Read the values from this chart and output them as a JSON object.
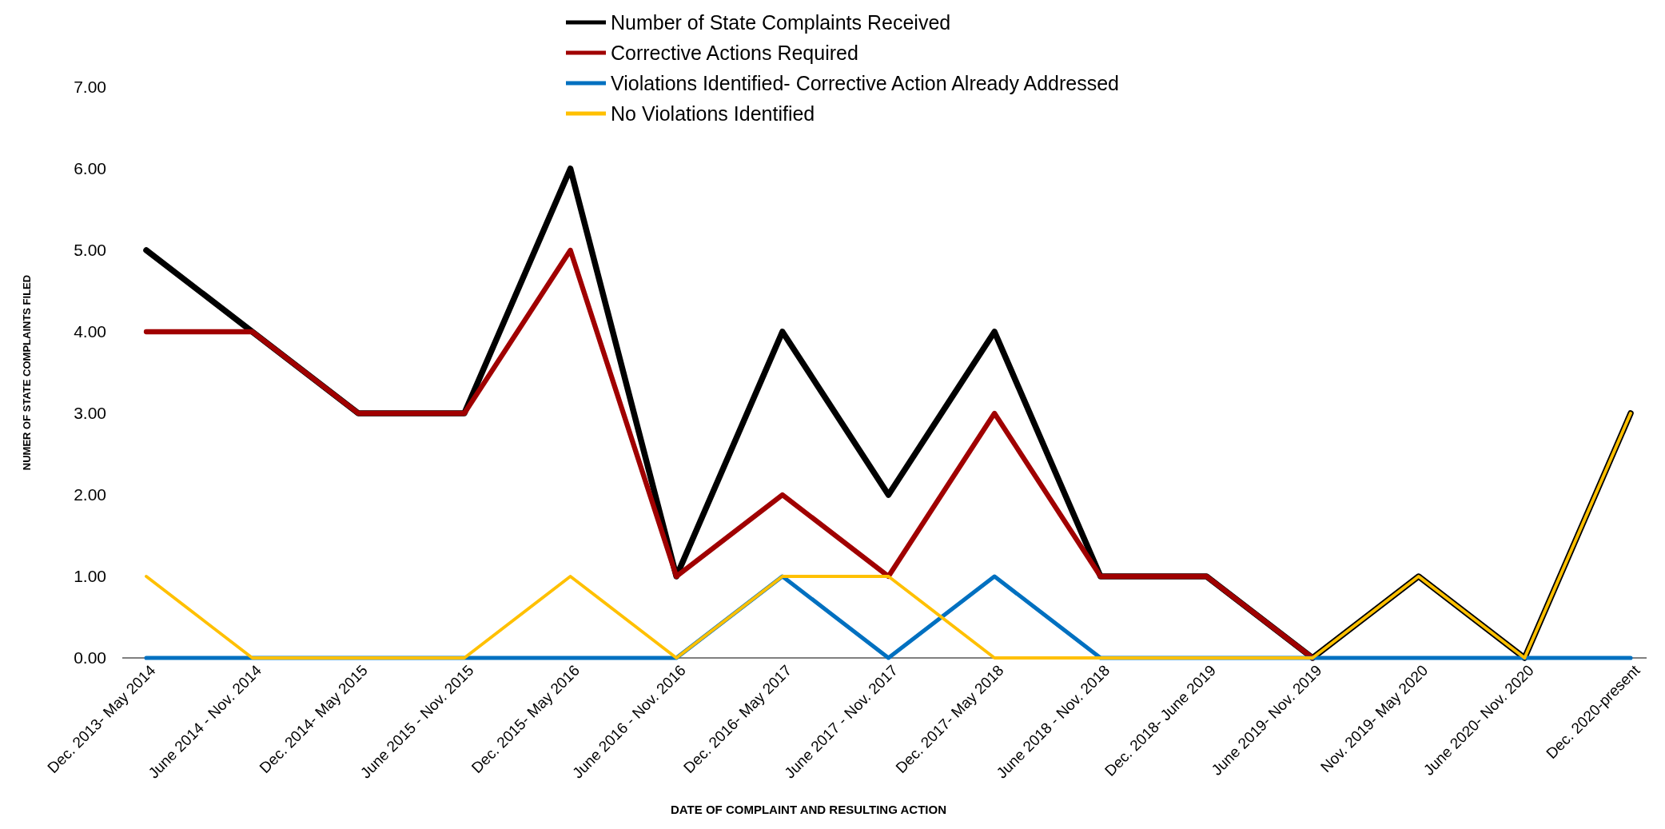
{
  "chart_data": {
    "type": "line",
    "xlabel": "DATE OF COMPLAINT AND RESULTING ACTION",
    "ylabel": "NUMER OF STATE COMPLAINTS FILED",
    "categories": [
      "Dec. 2013- May 2014",
      "June 2014 - Nov. 2014",
      "Dec. 2014- May 2015",
      "June 2015 - Nov. 2015",
      "Dec. 2015- May 2016",
      "June 2016 - Nov. 2016",
      "Dec. 2016- May 2017",
      "June 2017 - Nov. 2017",
      "Dec. 2017- May 2018",
      "June 2018 - Nov. 2018",
      "Dec. 2018- June 2019",
      "June 2019- Nov. 2019",
      "Nov. 2019- May 2020",
      "June 2020- Nov. 2020",
      "Dec. 2020-present"
    ],
    "series": [
      {
        "name": "Number of State Complaints Received",
        "color": "#000000",
        "values": [
          5,
          4,
          3,
          3,
          6,
          1,
          4,
          2,
          4,
          1,
          1,
          0,
          1,
          0,
          3
        ]
      },
      {
        "name": "Corrective Actions Required",
        "color": "#a00000",
        "values": [
          4,
          4,
          3,
          3,
          5,
          1,
          2,
          1,
          3,
          1,
          1,
          0,
          null,
          null,
          null
        ]
      },
      {
        "name": "Violations Identified- Corrective Action Already Addressed",
        "color": "#0070c0",
        "values": [
          0,
          0,
          0,
          0,
          0,
          0,
          1,
          0,
          1,
          0,
          0,
          0,
          0,
          0,
          0
        ]
      },
      {
        "name": "No Violations Identified",
        "color": "#ffc000",
        "values": [
          1,
          0,
          0,
          0,
          1,
          0,
          1,
          1,
          0,
          0,
          0,
          0,
          1,
          0,
          3
        ]
      }
    ],
    "ylim": [
      0,
      7
    ],
    "yticks": [
      {
        "value": 0,
        "label": "0.00"
      },
      {
        "value": 1,
        "label": "1.00"
      },
      {
        "value": 2,
        "label": "2.00"
      },
      {
        "value": 3,
        "label": "3.00"
      },
      {
        "value": 4,
        "label": "4.00"
      },
      {
        "value": 5,
        "label": "5.00"
      },
      {
        "value": 6,
        "label": "6.00"
      },
      {
        "value": 7,
        "label": "7.00"
      }
    ],
    "grid": false,
    "legend": "top",
    "marker": "none",
    "line_style": "solid"
  }
}
